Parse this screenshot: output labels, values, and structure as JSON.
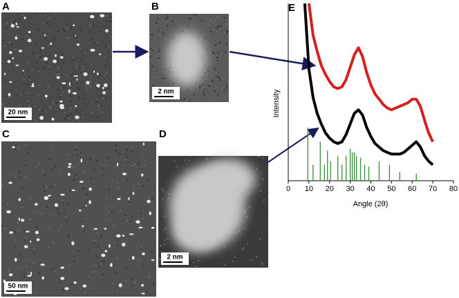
{
  "panels": [
    {
      "label": "A",
      "scale_bar": "20 nm"
    },
    {
      "label": "B",
      "scale_bar": "2 nm"
    },
    {
      "label": "C",
      "scale_bar": "50 nm"
    },
    {
      "label": "D",
      "scale_bar": "2 nm"
    }
  ],
  "chart_data": {
    "type": "line",
    "panel_label": "E",
    "xlabel": "Angle (2θ)",
    "ylabel": "Intensity",
    "xlim": [
      0,
      80
    ],
    "xticks": [
      0,
      10,
      20,
      30,
      40,
      50,
      60,
      70,
      80
    ],
    "ylim": [
      0,
      100
    ],
    "series": [
      {
        "color": "#d42020",
        "x": [
          8,
          10,
          12,
          14,
          16,
          18,
          20,
          22,
          24,
          26,
          28,
          30,
          32,
          34,
          36,
          38,
          40,
          42,
          44,
          46,
          48,
          50,
          52,
          54,
          56,
          58,
          60,
          62,
          64,
          66,
          68,
          70
        ],
        "values": [
          null,
          100,
          82,
          73,
          65,
          60,
          56,
          53,
          52,
          53,
          57,
          64,
          71,
          75,
          70,
          61,
          54,
          49,
          46,
          43,
          41,
          40,
          41,
          42,
          43,
          44,
          46,
          46,
          42,
          34,
          27,
          22
        ]
      },
      {
        "color": "#000000",
        "x": [
          8,
          10,
          12,
          14,
          16,
          18,
          20,
          22,
          24,
          26,
          28,
          30,
          32,
          34,
          36,
          38,
          40,
          42,
          44,
          46,
          48,
          50,
          52,
          54,
          56,
          58,
          60,
          62,
          64,
          66,
          68,
          70
        ],
        "values": [
          100,
          63,
          47,
          38,
          32,
          27,
          24,
          22,
          21,
          22,
          26,
          32,
          38,
          40,
          37,
          30,
          25,
          21,
          19,
          17,
          16,
          15,
          15,
          15,
          16,
          18,
          20,
          22,
          19,
          14,
          11,
          9
        ]
      },
      {
        "color": "#3a8a3a",
        "style": "sticks",
        "x": [
          9.5,
          12,
          15.5,
          17.5,
          19,
          20.5,
          24,
          26,
          28,
          30,
          31,
          32,
          33,
          35,
          37,
          39,
          44,
          49,
          54,
          62
        ],
        "values": [
          30,
          9,
          22,
          9,
          17,
          11,
          14,
          9,
          14,
          18,
          16,
          16,
          14,
          13,
          9,
          8,
          11,
          9,
          5,
          4
        ]
      }
    ]
  }
}
